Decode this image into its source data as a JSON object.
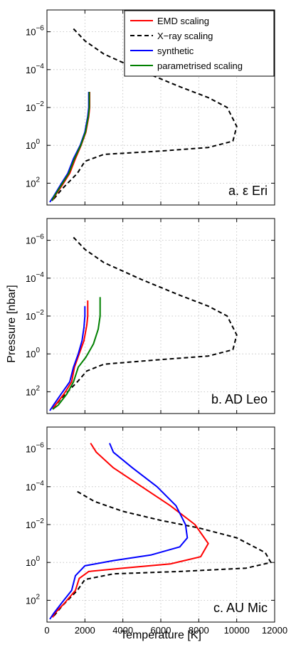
{
  "chart_data": {
    "type": "line",
    "ylabel": "Pressure [nbar]",
    "xlabel": "Temperature [K]",
    "xlim": [
      0,
      12000
    ],
    "ylim_log": [
      1000,
      1e-07
    ],
    "y_scale": "log",
    "y_reversed": true,
    "grid": true,
    "x_ticks": [
      0,
      2000,
      4000,
      6000,
      8000,
      10000,
      12000
    ],
    "y_ticks": [
      {
        "value": 100,
        "base": "10",
        "exp": "2"
      },
      {
        "value": 1,
        "base": "10",
        "exp": "0"
      },
      {
        "value": 0.01,
        "base": "10",
        "exp": "−2"
      },
      {
        "value": 0.0001,
        "base": "10",
        "exp": "−4"
      },
      {
        "value": 1e-06,
        "base": "10",
        "exp": "−6"
      }
    ],
    "legend": {
      "placement": "top-right",
      "entries": [
        {
          "label": "EMD scaling",
          "color": "#ff0000",
          "dash": "solid"
        },
        {
          "label": "X−ray scaling",
          "color": "#000000",
          "dash": "dashed"
        },
        {
          "label": "synthetic",
          "color": "#0000ff",
          "dash": "solid"
        },
        {
          "label": "parametrised scaling",
          "color": "#008000",
          "dash": "solid"
        }
      ]
    },
    "panels": [
      {
        "label": "a. ε Eri",
        "series": [
          {
            "legend": 1,
            "color": "#000000",
            "dash": "dashed",
            "points": [
              [
                1400,
                7e-07
              ],
              [
                2000,
                3e-06
              ],
              [
                3000,
                1.5e-05
              ],
              [
                5000,
                0.00012
              ],
              [
                7000,
                0.0008
              ],
              [
                8500,
                0.003
              ],
              [
                9500,
                0.01
              ],
              [
                10000,
                0.1
              ],
              [
                9800,
                0.6
              ],
              [
                8500,
                1.3
              ],
              [
                6000,
                2
              ],
              [
                3000,
                3
              ],
              [
                2000,
                7
              ],
              [
                1600,
                30
              ],
              [
                800,
                200
              ],
              [
                300,
                800
              ]
            ]
          },
          {
            "legend": 0,
            "color": "#ff0000",
            "dash": "solid",
            "points": [
              [
                2250,
                0.0015
              ],
              [
                2250,
                0.01
              ],
              [
                2200,
                0.03
              ],
              [
                2050,
                0.2
              ],
              [
                1800,
                1
              ],
              [
                1500,
                5
              ],
              [
                1200,
                30
              ],
              [
                800,
                130
              ],
              [
                400,
                500
              ],
              [
                300,
                800
              ]
            ]
          },
          {
            "legend": 2,
            "color": "#0000ff",
            "dash": "solid",
            "points": [
              [
                2200,
                0.0015
              ],
              [
                2200,
                0.01
              ],
              [
                2150,
                0.03
              ],
              [
                2000,
                0.2
              ],
              [
                1750,
                1
              ],
              [
                1400,
                5
              ],
              [
                1100,
                30
              ],
              [
                700,
                130
              ],
              [
                350,
                500
              ],
              [
                150,
                1000
              ]
            ]
          },
          {
            "legend": 3,
            "color": "#008000",
            "dash": "solid",
            "points": [
              [
                2230,
                0.0015
              ],
              [
                2230,
                0.01
              ],
              [
                2180,
                0.03
              ],
              [
                2030,
                0.2
              ],
              [
                1780,
                1
              ],
              [
                1450,
                5
              ],
              [
                1150,
                30
              ],
              [
                750,
                130
              ],
              [
                380,
                500
              ],
              [
                260,
                850
              ]
            ]
          }
        ]
      },
      {
        "label": "b. AD Leo",
        "series": [
          {
            "legend": 1,
            "color": "#000000",
            "dash": "dashed",
            "points": [
              [
                1400,
                7e-07
              ],
              [
                2000,
                3e-06
              ],
              [
                3000,
                1.5e-05
              ],
              [
                5000,
                0.00012
              ],
              [
                7000,
                0.0008
              ],
              [
                8500,
                0.003
              ],
              [
                9500,
                0.01
              ],
              [
                10000,
                0.1
              ],
              [
                9800,
                0.6
              ],
              [
                8500,
                1.3
              ],
              [
                6000,
                2
              ],
              [
                3000,
                3.5
              ],
              [
                2100,
                8
              ],
              [
                1600,
                30
              ],
              [
                800,
                200
              ],
              [
                300,
                800
              ]
            ]
          },
          {
            "legend": 0,
            "color": "#ff0000",
            "dash": "solid",
            "points": [
              [
                2150,
                0.0015
              ],
              [
                2150,
                0.01
              ],
              [
                2100,
                0.03
              ],
              [
                1950,
                0.2
              ],
              [
                1700,
                1
              ],
              [
                1450,
                5
              ],
              [
                1300,
                30
              ],
              [
                900,
                130
              ],
              [
                450,
                500
              ],
              [
                300,
                800
              ]
            ]
          },
          {
            "legend": 2,
            "color": "#0000ff",
            "dash": "solid",
            "points": [
              [
                2000,
                0.003
              ],
              [
                2000,
                0.01
              ],
              [
                1950,
                0.04
              ],
              [
                1850,
                0.2
              ],
              [
                1650,
                1
              ],
              [
                1400,
                5
              ],
              [
                1200,
                30
              ],
              [
                750,
                130
              ],
              [
                350,
                500
              ],
              [
                150,
                1000
              ]
            ]
          },
          {
            "legend": 3,
            "color": "#008000",
            "dash": "solid",
            "points": [
              [
                2800,
                0.001
              ],
              [
                2800,
                0.01
              ],
              [
                2700,
                0.05
              ],
              [
                2450,
                0.3
              ],
              [
                2050,
                1.5
              ],
              [
                1650,
                5
              ],
              [
                1400,
                30
              ],
              [
                1050,
                130
              ],
              [
                600,
                500
              ],
              [
                300,
                850
              ]
            ]
          }
        ]
      },
      {
        "label": "c. AU Mic",
        "series": [
          {
            "legend": 1,
            "color": "#000000",
            "dash": "dashed",
            "points": [
              [
                1600,
                0.00018
              ],
              [
                2500,
                0.0006
              ],
              [
                4000,
                0.002
              ],
              [
                6000,
                0.006
              ],
              [
                8000,
                0.015
              ],
              [
                10000,
                0.05
              ],
              [
                11500,
                0.3
              ],
              [
                11800,
                1
              ],
              [
                10500,
                2
              ],
              [
                7000,
                3
              ],
              [
                3500,
                4
              ],
              [
                2000,
                8
              ],
              [
                1600,
                30
              ],
              [
                800,
                200
              ],
              [
                300,
                800
              ]
            ]
          },
          {
            "legend": 0,
            "color": "#ff0000",
            "dash": "solid",
            "points": [
              [
                2300,
                5e-07
              ],
              [
                2600,
                1.5e-06
              ],
              [
                3500,
                1e-05
              ],
              [
                5000,
                0.0001
              ],
              [
                6500,
                0.001
              ],
              [
                7800,
                0.01
              ],
              [
                8500,
                0.1
              ],
              [
                8100,
                0.5
              ],
              [
                6500,
                1.2
              ],
              [
                4000,
                2
              ],
              [
                2200,
                3
              ],
              [
                1700,
                7
              ],
              [
                1500,
                30
              ],
              [
                900,
                150
              ],
              [
                400,
                500
              ],
              [
                300,
                800
              ]
            ]
          },
          {
            "legend": 2,
            "color": "#0000ff",
            "dash": "solid",
            "points": [
              [
                3300,
                5e-07
              ],
              [
                3500,
                1.5e-06
              ],
              [
                4500,
                1e-05
              ],
              [
                5800,
                0.0001
              ],
              [
                6800,
                0.001
              ],
              [
                7300,
                0.01
              ],
              [
                7400,
                0.05
              ],
              [
                7000,
                0.15
              ],
              [
                5500,
                0.4
              ],
              [
                3500,
                0.8
              ],
              [
                2000,
                1.5
              ],
              [
                1500,
                5
              ],
              [
                1300,
                30
              ],
              [
                800,
                130
              ],
              [
                350,
                500
              ],
              [
                150,
                1000
              ]
            ]
          }
        ]
      }
    ]
  }
}
